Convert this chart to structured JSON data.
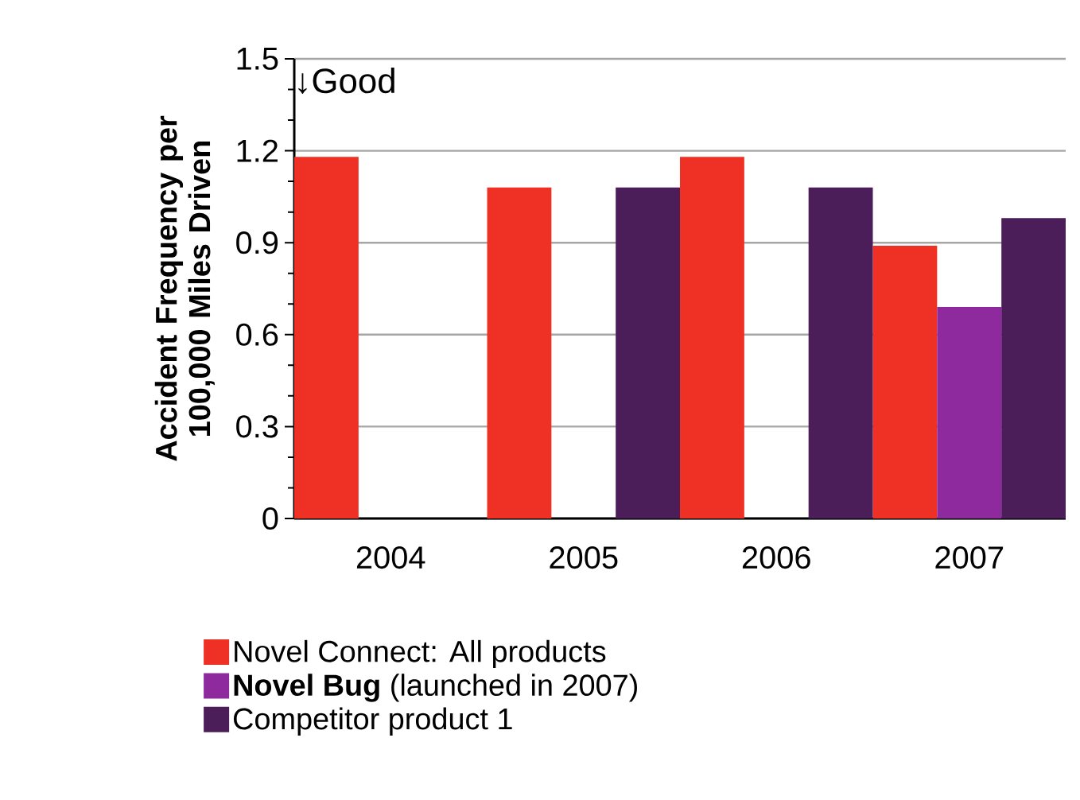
{
  "chart_data": {
    "type": "bar",
    "ylabel": "Accident Frequency per 100,000 Miles Driven",
    "categories": [
      "2004",
      "2005",
      "2006",
      "2007"
    ],
    "series": [
      {
        "name": "Novel Connect: All products",
        "color": "#ee3124",
        "values": [
          1.18,
          1.08,
          1.18,
          0.89
        ]
      },
      {
        "name": "**Novel Bug** (launched in 2007)",
        "color": "#8e2a9e",
        "values": [
          null,
          null,
          null,
          0.69
        ]
      },
      {
        "name": "Competitor product 1",
        "color": "#4b1e5a",
        "values": [
          null,
          1.08,
          1.08,
          0.98
        ]
      }
    ],
    "ylim": [
      0,
      1.5
    ],
    "yticks": [
      0,
      {
        "value": 0.1,
        "label": null
      },
      {
        "value": 0.2,
        "label": null
      },
      0.3,
      {
        "value": 0.4,
        "label": null
      },
      {
        "value": 0.5,
        "label": null
      },
      0.6,
      {
        "value": 0.7,
        "label": null
      },
      {
        "value": 0.8,
        "label": null
      },
      0.9,
      {
        "value": 1.0,
        "label": null
      },
      {
        "value": 1.1,
        "label": null
      },
      1.2,
      {
        "value": 1.3,
        "label": null
      },
      {
        "value": 1.4,
        "label": null
      },
      1.5
    ],
    "grid": "y",
    "legend": "bottom",
    "annotations": [
      "↓Good"
    ]
  }
}
